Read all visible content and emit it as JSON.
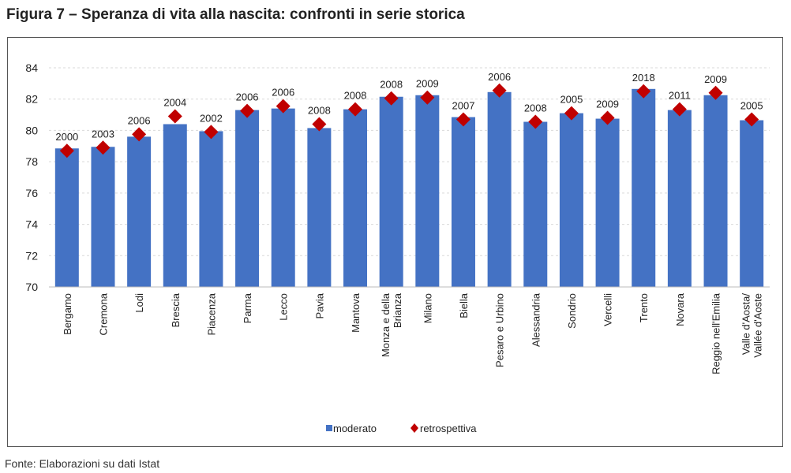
{
  "title": "Figura 7 – Speranza di vita alla nascita: confronti in serie storica",
  "source": "Fonte: Elaborazioni su dati Istat",
  "colors": {
    "bar": "#4472C4",
    "marker": "#C00000",
    "grid": "#D9D9D9"
  },
  "chart_data": {
    "type": "bar",
    "title": "Speranza di vita alla nascita: confronti in serie storica",
    "xlabel": "",
    "ylabel": "",
    "ylim": [
      70,
      84
    ],
    "yticks": [
      70,
      72,
      74,
      76,
      78,
      80,
      82,
      84
    ],
    "grid": true,
    "legend_position": "bottom",
    "categories": [
      "Bergamo",
      "Cremona",
      "Lodi",
      "Brescia",
      "Piacenza",
      "Parma",
      "Lecco",
      "Pavia",
      "Mantova",
      "Monza e della\nBrianza",
      "Milano",
      "Biella",
      "Pesaro e Urbino",
      "Alessandria",
      "Sondrio",
      "Vercelli",
      "Trento",
      "Novara",
      "Reggio nell'Emilia",
      "Valle d'Aosta/\nVallée d'Aoste"
    ],
    "series": [
      {
        "name": "moderato",
        "type": "bar",
        "values": [
          78.85,
          78.95,
          79.6,
          80.4,
          79.95,
          81.3,
          81.4,
          80.15,
          81.35,
          82.15,
          82.25,
          80.85,
          82.45,
          80.55,
          81.1,
          80.75,
          82.65,
          81.3,
          82.25,
          80.65
        ]
      },
      {
        "name": "retrospettiva",
        "type": "marker",
        "values": [
          78.7,
          78.9,
          79.75,
          80.9,
          79.9,
          81.25,
          81.55,
          80.4,
          81.35,
          82.05,
          82.1,
          80.7,
          82.55,
          80.55,
          81.1,
          80.8,
          82.5,
          81.35,
          82.4,
          80.7
        ],
        "labels": [
          "2000",
          "2003",
          "2006",
          "2004",
          "2002",
          "2006",
          "2006",
          "2008",
          "2008",
          "2008",
          "2009",
          "2007",
          "2006",
          "2008",
          "2005",
          "2009",
          "2018",
          "2011",
          "2009",
          "2005"
        ]
      }
    ]
  }
}
